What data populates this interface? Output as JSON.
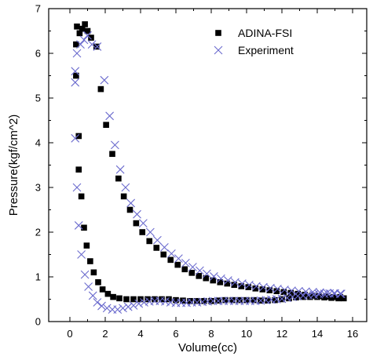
{
  "chart_data": {
    "type": "scatter",
    "title": "",
    "xlabel": "Volume(cc)",
    "ylabel": "Pressure(kgf/cm^2)",
    "xlim": [
      -1.2,
      16.8
    ],
    "ylim": [
      0,
      7
    ],
    "xticks": [
      "0",
      "2",
      "4",
      "6",
      "8",
      "10",
      "12",
      "14",
      "16"
    ],
    "yticks": [
      "0",
      "1",
      "2",
      "3",
      "4",
      "5",
      "6",
      "7"
    ],
    "grid": false,
    "legend_position": "top-right",
    "series": [
      {
        "name": "ADINA-FSI",
        "marker": "filled-square",
        "color": "#000000",
        "points": [
          [
            0.4,
            6.6
          ],
          [
            0.55,
            6.45
          ],
          [
            0.7,
            6.55
          ],
          [
            0.85,
            6.65
          ],
          [
            1.0,
            6.5
          ],
          [
            1.2,
            6.35
          ],
          [
            1.5,
            6.15
          ],
          [
            0.35,
            6.2
          ],
          [
            0.35,
            5.5
          ],
          [
            0.5,
            4.15
          ],
          [
            0.5,
            3.4
          ],
          [
            0.65,
            2.8
          ],
          [
            0.8,
            2.1
          ],
          [
            0.95,
            1.7
          ],
          [
            1.15,
            1.35
          ],
          [
            1.35,
            1.1
          ],
          [
            1.6,
            0.88
          ],
          [
            1.85,
            0.72
          ],
          [
            2.15,
            0.62
          ],
          [
            2.45,
            0.55
          ],
          [
            2.8,
            0.52
          ],
          [
            3.2,
            0.5
          ],
          [
            3.6,
            0.5
          ],
          [
            4.0,
            0.5
          ],
          [
            4.4,
            0.5
          ],
          [
            4.8,
            0.5
          ],
          [
            5.2,
            0.5
          ],
          [
            5.6,
            0.5
          ],
          [
            6.0,
            0.48
          ],
          [
            6.4,
            0.47
          ],
          [
            6.8,
            0.46
          ],
          [
            7.2,
            0.46
          ],
          [
            7.6,
            0.46
          ],
          [
            8.0,
            0.46
          ],
          [
            8.4,
            0.47
          ],
          [
            8.8,
            0.48
          ],
          [
            9.2,
            0.48
          ],
          [
            9.6,
            0.48
          ],
          [
            10.0,
            0.48
          ],
          [
            10.4,
            0.48
          ],
          [
            10.8,
            0.47
          ],
          [
            11.2,
            0.47
          ],
          [
            11.6,
            0.48
          ],
          [
            12.0,
            0.5
          ],
          [
            12.4,
            0.52
          ],
          [
            12.8,
            0.54
          ],
          [
            13.2,
            0.55
          ],
          [
            13.6,
            0.55
          ],
          [
            14.0,
            0.55
          ],
          [
            14.4,
            0.54
          ],
          [
            14.8,
            0.53
          ],
          [
            15.2,
            0.52
          ],
          [
            15.5,
            0.52
          ],
          [
            1.75,
            5.2
          ],
          [
            2.05,
            4.4
          ],
          [
            2.4,
            3.75
          ],
          [
            2.75,
            3.2
          ],
          [
            3.05,
            2.8
          ],
          [
            3.4,
            2.5
          ],
          [
            3.75,
            2.2
          ],
          [
            4.1,
            2.0
          ],
          [
            4.5,
            1.8
          ],
          [
            4.9,
            1.65
          ],
          [
            5.3,
            1.5
          ],
          [
            5.7,
            1.38
          ],
          [
            6.1,
            1.27
          ],
          [
            6.5,
            1.17
          ],
          [
            6.9,
            1.09
          ],
          [
            7.3,
            1.02
          ],
          [
            7.7,
            0.97
          ],
          [
            8.1,
            0.92
          ],
          [
            8.5,
            0.88
          ],
          [
            8.9,
            0.85
          ],
          [
            9.3,
            0.82
          ],
          [
            9.7,
            0.79
          ],
          [
            10.1,
            0.77
          ],
          [
            10.5,
            0.74
          ],
          [
            10.9,
            0.72
          ],
          [
            11.3,
            0.7
          ],
          [
            11.7,
            0.68
          ],
          [
            12.1,
            0.66
          ],
          [
            12.5,
            0.64
          ],
          [
            12.9,
            0.62
          ],
          [
            13.3,
            0.6
          ],
          [
            13.7,
            0.58
          ],
          [
            14.1,
            0.57
          ],
          [
            14.5,
            0.56
          ],
          [
            14.9,
            0.55
          ],
          [
            15.3,
            0.55
          ]
        ]
      },
      {
        "name": "Experiment",
        "marker": "x",
        "color": "#6a6acd",
        "points": [
          [
            0.3,
            5.35
          ],
          [
            0.3,
            5.6
          ],
          [
            0.4,
            6.0
          ],
          [
            0.6,
            6.2
          ],
          [
            0.8,
            6.3
          ],
          [
            1.0,
            6.4
          ],
          [
            1.25,
            6.2
          ],
          [
            1.55,
            6.15
          ],
          [
            0.3,
            4.1
          ],
          [
            0.4,
            3.0
          ],
          [
            0.5,
            2.15
          ],
          [
            0.65,
            1.5
          ],
          [
            0.85,
            1.05
          ],
          [
            1.05,
            0.78
          ],
          [
            1.3,
            0.58
          ],
          [
            1.55,
            0.43
          ],
          [
            1.8,
            0.35
          ],
          [
            2.1,
            0.3
          ],
          [
            2.4,
            0.27
          ],
          [
            2.7,
            0.27
          ],
          [
            3.0,
            0.3
          ],
          [
            3.3,
            0.33
          ],
          [
            3.6,
            0.36
          ],
          [
            3.9,
            0.4
          ],
          [
            4.2,
            0.43
          ],
          [
            4.5,
            0.45
          ],
          [
            4.8,
            0.46
          ],
          [
            5.1,
            0.46
          ],
          [
            5.4,
            0.45
          ],
          [
            5.7,
            0.43
          ],
          [
            6.0,
            0.42
          ],
          [
            6.3,
            0.42
          ],
          [
            6.6,
            0.42
          ],
          [
            6.9,
            0.43
          ],
          [
            7.2,
            0.43
          ],
          [
            7.5,
            0.44
          ],
          [
            7.8,
            0.45
          ],
          [
            8.1,
            0.46
          ],
          [
            8.4,
            0.46
          ],
          [
            8.7,
            0.46
          ],
          [
            9.0,
            0.46
          ],
          [
            9.3,
            0.46
          ],
          [
            9.6,
            0.46
          ],
          [
            9.9,
            0.46
          ],
          [
            10.2,
            0.46
          ],
          [
            10.5,
            0.46
          ],
          [
            10.8,
            0.47
          ],
          [
            11.1,
            0.48
          ],
          [
            11.4,
            0.49
          ],
          [
            11.7,
            0.5
          ],
          [
            12.0,
            0.51
          ],
          [
            12.3,
            0.53
          ],
          [
            12.6,
            0.55
          ],
          [
            12.9,
            0.57
          ],
          [
            13.2,
            0.58
          ],
          [
            13.5,
            0.59
          ],
          [
            13.8,
            0.6
          ],
          [
            14.1,
            0.61
          ],
          [
            14.4,
            0.62
          ],
          [
            14.7,
            0.63
          ],
          [
            15.0,
            0.63
          ],
          [
            15.3,
            0.62
          ],
          [
            1.95,
            5.4
          ],
          [
            2.25,
            4.6
          ],
          [
            2.55,
            3.95
          ],
          [
            2.85,
            3.4
          ],
          [
            3.15,
            3.0
          ],
          [
            3.45,
            2.65
          ],
          [
            3.8,
            2.4
          ],
          [
            4.15,
            2.2
          ],
          [
            4.55,
            2.0
          ],
          [
            4.95,
            1.82
          ],
          [
            5.35,
            1.66
          ],
          [
            5.75,
            1.52
          ],
          [
            6.15,
            1.41
          ],
          [
            6.55,
            1.31
          ],
          [
            6.95,
            1.22
          ],
          [
            7.35,
            1.14
          ],
          [
            7.75,
            1.07
          ],
          [
            8.15,
            1.01
          ],
          [
            8.55,
            0.96
          ],
          [
            8.95,
            0.92
          ],
          [
            9.35,
            0.88
          ],
          [
            9.75,
            0.85
          ],
          [
            10.15,
            0.82
          ],
          [
            10.55,
            0.79
          ],
          [
            10.95,
            0.77
          ],
          [
            11.35,
            0.75
          ],
          [
            11.75,
            0.73
          ],
          [
            12.15,
            0.71
          ],
          [
            12.55,
            0.69
          ],
          [
            12.95,
            0.68
          ],
          [
            13.35,
            0.67
          ],
          [
            13.75,
            0.66
          ],
          [
            14.15,
            0.65
          ],
          [
            14.55,
            0.64
          ],
          [
            14.95,
            0.63
          ],
          [
            15.35,
            0.62
          ]
        ]
      }
    ]
  }
}
